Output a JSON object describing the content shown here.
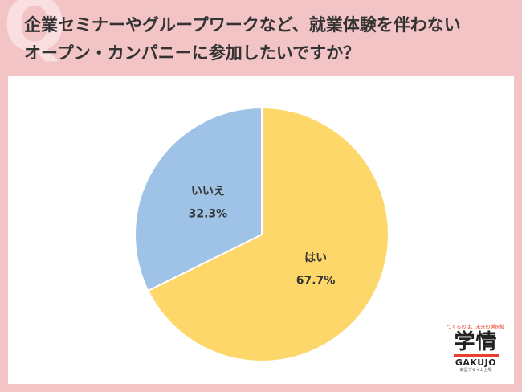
{
  "header": {
    "title_line1": "企業セミナーやグループワークなど、就業体験を伴わない",
    "title_line2": "オープン・カンパニーに参加したいですか？",
    "q_mark": "Q"
  },
  "colors": {
    "background": "#f2c4c6",
    "panel": "#ffffff",
    "yes": "#fdd76a",
    "no": "#9fc3e7"
  },
  "chart_data": {
    "type": "pie",
    "title": "",
    "slices": [
      {
        "label": "はい",
        "value": 67.7,
        "display": "67.7%",
        "color": "#fdd76a"
      },
      {
        "label": "いいえ",
        "value": 32.3,
        "display": "32.3%",
        "color": "#9fc3e7"
      }
    ],
    "start_angle": "12 o'clock",
    "direction": "clockwise"
  },
  "logo": {
    "tagline": "つくるのは、未来の選択肢",
    "name": "学情",
    "name_en": "GAKUJO",
    "sub": "東証プライム上場"
  }
}
